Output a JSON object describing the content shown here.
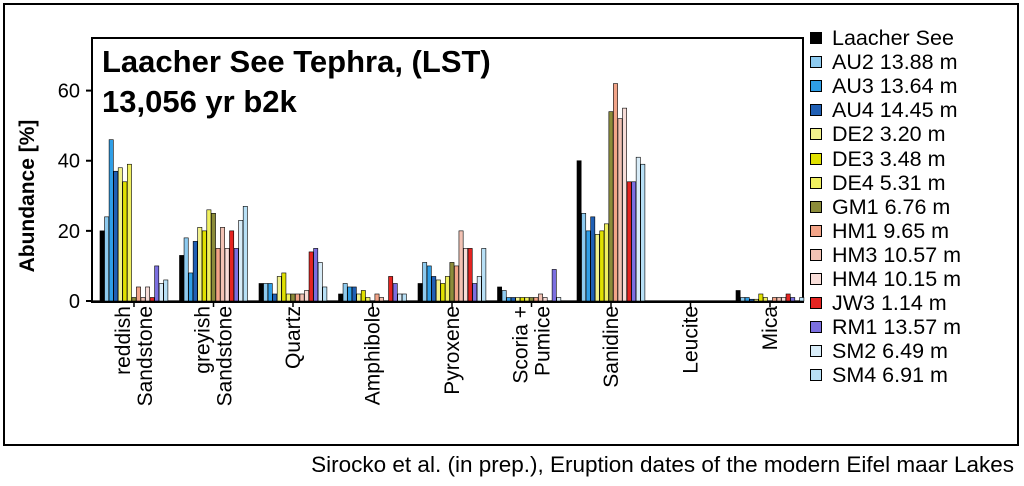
{
  "chart_data": {
    "type": "bar",
    "title": "Laacher See Tephra, (LST)",
    "subtitle": "13,056 yr b2k",
    "xlabel": "",
    "ylabel": "Abundance [%]",
    "ylim": [
      0,
      75
    ],
    "yticks": [
      0,
      20,
      40,
      60
    ],
    "grid": false,
    "legend_position": "right",
    "categories": [
      [
        "reddish",
        "Sandstone"
      ],
      [
        "greyish",
        "Sandstone"
      ],
      [
        "Quartz"
      ],
      [
        "Amphibole"
      ],
      [
        "Pyroxene"
      ],
      [
        "Scoria +",
        "Pumice"
      ],
      [
        "Sanidine"
      ],
      [
        "Leucite"
      ],
      [
        "Mica"
      ]
    ],
    "series": [
      {
        "name": "Laacher See",
        "color": "#000000",
        "values": [
          20,
          13,
          5,
          2,
          5,
          4,
          40,
          0,
          3
        ]
      },
      {
        "name": "AU2 13.88 m",
        "color": "#8ecbf0",
        "values": [
          24,
          18,
          5,
          5,
          11,
          3,
          25,
          0,
          1
        ]
      },
      {
        "name": "AU3 13.64 m",
        "color": "#2f9ee6",
        "values": [
          46,
          8,
          5,
          4,
          10,
          1,
          20,
          0,
          1
        ]
      },
      {
        "name": "AU4 14.45 m",
        "color": "#1f5fb4",
        "values": [
          37,
          17,
          2,
          4,
          7,
          1,
          24,
          0,
          0.5
        ]
      },
      {
        "name": "DE2 3.20 m",
        "color": "#f2f28c",
        "values": [
          38,
          21,
          7,
          2,
          6,
          1,
          19,
          0,
          0.5
        ]
      },
      {
        "name": "DE3 3.48 m",
        "color": "#e0e000",
        "values": [
          34,
          20,
          8,
          3,
          5,
          1,
          20,
          0,
          2
        ]
      },
      {
        "name": "DE4 5.31 m",
        "color": "#f0f060",
        "values": [
          39,
          26,
          2,
          1,
          7,
          1,
          22,
          0,
          1
        ]
      },
      {
        "name": "GM1 6.76 m",
        "color": "#8c8c3a",
        "values": [
          1,
          25,
          2,
          0,
          11,
          1,
          54,
          0,
          0
        ]
      },
      {
        "name": "HM1 9.65 m",
        "color": "#f2a488",
        "values": [
          4,
          15,
          2,
          2,
          10,
          1,
          62,
          0,
          1
        ]
      },
      {
        "name": "HM3 10.57 m",
        "color": "#f2c2b4",
        "values": [
          1,
          21,
          2,
          1,
          20,
          2,
          52,
          0,
          1
        ]
      },
      {
        "name": "HM4 10.15 m",
        "color": "#f8ddd8",
        "values": [
          4,
          15,
          3,
          0,
          15,
          1,
          55,
          0,
          1
        ]
      },
      {
        "name": "JW3 1.14 m",
        "color": "#e52421",
        "values": [
          1,
          20,
          14,
          7,
          15,
          0,
          34,
          0,
          2
        ]
      },
      {
        "name": "RM1 13.57 m",
        "color": "#7b6fe0",
        "values": [
          10,
          15,
          15,
          5,
          5,
          9,
          34,
          0,
          1
        ]
      },
      {
        "name": "SM2 6.49 m",
        "color": "#d8ecf8",
        "values": [
          5,
          23,
          11,
          2,
          7,
          1,
          41,
          0,
          0
        ]
      },
      {
        "name": "SM4 6.91 m",
        "color": "#b8e0f6",
        "values": [
          6,
          27,
          4,
          2,
          15,
          0,
          39,
          0,
          1
        ]
      }
    ]
  },
  "caption": "Sirocko et al. (in prep.), Eruption dates of the modern Eifel maar Lakes"
}
